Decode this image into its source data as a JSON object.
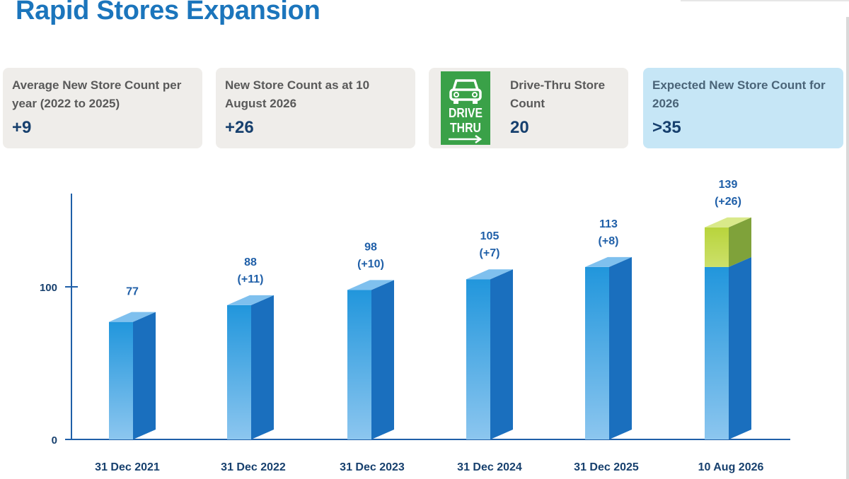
{
  "page": {
    "title": "Rapid Stores Expansion"
  },
  "cards": [
    {
      "label": "Average New Store Count per year (2022 to 2025)",
      "value": "+9"
    },
    {
      "label": "New Store Count as at 10 August 2026",
      "value": "+26"
    },
    {
      "label": "Drive-Thru Store Count",
      "value": "20",
      "icon": "drive-thru-icon",
      "icon_text": [
        "DRIVE",
        "THRU"
      ]
    },
    {
      "label": "Expected New Store Count for 2026",
      "value": ">35"
    }
  ],
  "chart_data": {
    "type": "bar",
    "stacked": true,
    "categories": [
      "31 Dec 2021",
      "31 Dec 2022",
      "31 Dec 2023",
      "31 Dec 2024",
      "31 Dec 2025",
      "10 Aug 2026"
    ],
    "totals": [
      77,
      88,
      98,
      105,
      113,
      139
    ],
    "increments": [
      "",
      "(+11)",
      "(+10)",
      "(+7)",
      "(+8)",
      "(+26)"
    ],
    "series": [
      {
        "values": [
          77,
          88,
          98,
          105,
          113,
          113
        ],
        "color": "#2e9ad9"
      },
      {
        "values": [
          0,
          0,
          0,
          0,
          0,
          26
        ],
        "color": "#a6c83c"
      }
    ],
    "yticks": [
      0,
      100
    ],
    "ylim": [
      0,
      160
    ],
    "grid": false,
    "colors": {
      "axis": "#1f5fa8",
      "label": "#1f5fa8",
      "tick_label": "#17406e"
    }
  }
}
